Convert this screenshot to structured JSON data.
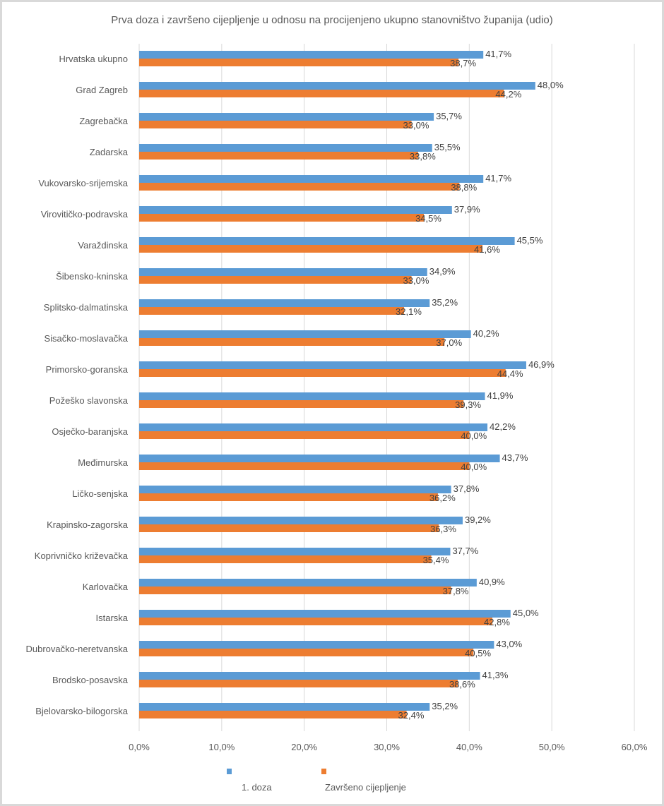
{
  "chart_data": {
    "type": "bar",
    "orientation": "horizontal",
    "title": "Prva doza i završeno cijepljenje u odnosu na procijenjeno ukupno stanovništvo županija (udio)",
    "categories": [
      "Hrvatska ukupno",
      "Grad Zagreb",
      "Zagrebačka",
      "Zadarska",
      "Vukovarsko-srijemska",
      "Virovitičko-podravska",
      "Varaždinska",
      "Šibensko-kninska",
      "Splitsko-dalmatinska",
      "Sisačko-moslavačka",
      "Primorsko-goranska",
      "Požeško slavonska",
      "Osječko-baranjska",
      "Međimurska",
      "Ličko-senjska",
      "Krapinsko-zagorska",
      "Koprivničko križevačka",
      "Karlovačka",
      "Istarska",
      "Dubrovačko-neretvanska",
      "Brodsko-posavska",
      "Bjelovarsko-bilogorska"
    ],
    "series": [
      {
        "name": "1. doza",
        "color": "#5b9bd5",
        "values": [
          41.7,
          48.0,
          35.7,
          35.5,
          41.7,
          37.9,
          45.5,
          34.9,
          35.2,
          40.2,
          46.9,
          41.9,
          42.2,
          43.7,
          37.8,
          39.2,
          37.7,
          40.9,
          45.0,
          43.0,
          41.3,
          35.2
        ]
      },
      {
        "name": "Završeno cijepljenje",
        "color": "#ed7d31",
        "values": [
          38.7,
          44.2,
          33.0,
          33.8,
          38.8,
          34.5,
          41.6,
          33.0,
          32.1,
          37.0,
          44.4,
          39.3,
          40.0,
          40.0,
          36.2,
          36.3,
          35.4,
          37.8,
          42.8,
          40.5,
          38.6,
          32.4
        ]
      }
    ],
    "xlim": [
      0,
      60
    ],
    "xticks": [
      "0,0%",
      "10,0%",
      "20,0%",
      "30,0%",
      "40,0%",
      "50,0%",
      "60,0%"
    ],
    "xlabel": "",
    "ylabel": "",
    "grid": "vertical",
    "legend": "bottom",
    "data_labels": true
  }
}
